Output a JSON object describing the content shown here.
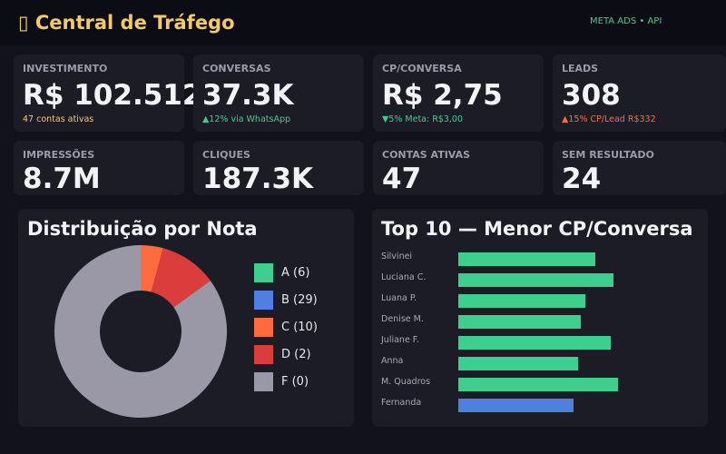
{
  "header": {
    "title": "▯ Central de Tráfego",
    "source": "META ADS • API"
  },
  "kpis": [
    {
      "label": "INVESTIMENTO",
      "value": "R$ 102.512",
      "sub": "47 contas ativas",
      "sub_color": "#f7c86b"
    },
    {
      "label": "CONVERSAS",
      "value": "37.3K",
      "sub": "▲12% via WhatsApp",
      "sub_color": "#3ecf8e"
    },
    {
      "label": "CP/CONVERSA",
      "value": "R$ 2,75",
      "sub": "▼5% Meta: R$3,00",
      "sub_color": "#3ecf8e"
    },
    {
      "label": "LEADS",
      "value": "308",
      "sub": "▲15% CP/Lead R$332",
      "sub_color": "#ff6b3d"
    },
    {
      "label": "IMPRESSÕES",
      "value": "8.7M"
    },
    {
      "label": "CLIQUES",
      "value": "187.3K"
    },
    {
      "label": "CONTAS ATIVAS",
      "value": "47"
    },
    {
      "label": "SEM RESULTADO",
      "value": "24"
    }
  ],
  "chart_data": [
    {
      "type": "pie",
      "title": "Distribuição por Nota",
      "legend": [
        {
          "label": "A (6)",
          "color": "#3ecf8e"
        },
        {
          "label": "B (29)",
          "color": "#4f80e1"
        },
        {
          "label": "C (10)",
          "color": "#ff6b3d"
        },
        {
          "label": "D (2)",
          "color": "#db3c3c"
        },
        {
          "label": "F (0)",
          "color": "#9a98a6"
        }
      ],
      "slices": [
        {
          "color": "#ff6b3d",
          "fraction": 0.042
        },
        {
          "color": "#db3c3c",
          "fraction": 0.108
        },
        {
          "color": "#9a98a6",
          "fraction": 0.85
        }
      ],
      "legend_placement": "right"
    },
    {
      "type": "bar",
      "orientation": "horizontal",
      "title": "Top 10 — Menor CP/Conversa",
      "categories": [
        "Silvinei",
        "Luciana C.",
        "Luana P.",
        "Denise M.",
        "Juliane F.",
        "Anna",
        "M. Quadros",
        "Fernanda"
      ],
      "values": [
        0.55,
        0.62,
        0.51,
        0.49,
        0.61,
        0.48,
        0.64,
        0.46
      ],
      "colors": [
        "#3ecf8e",
        "#3ecf8e",
        "#3ecf8e",
        "#3ecf8e",
        "#3ecf8e",
        "#3ecf8e",
        "#3ecf8e",
        "#4f80e1"
      ]
    }
  ]
}
